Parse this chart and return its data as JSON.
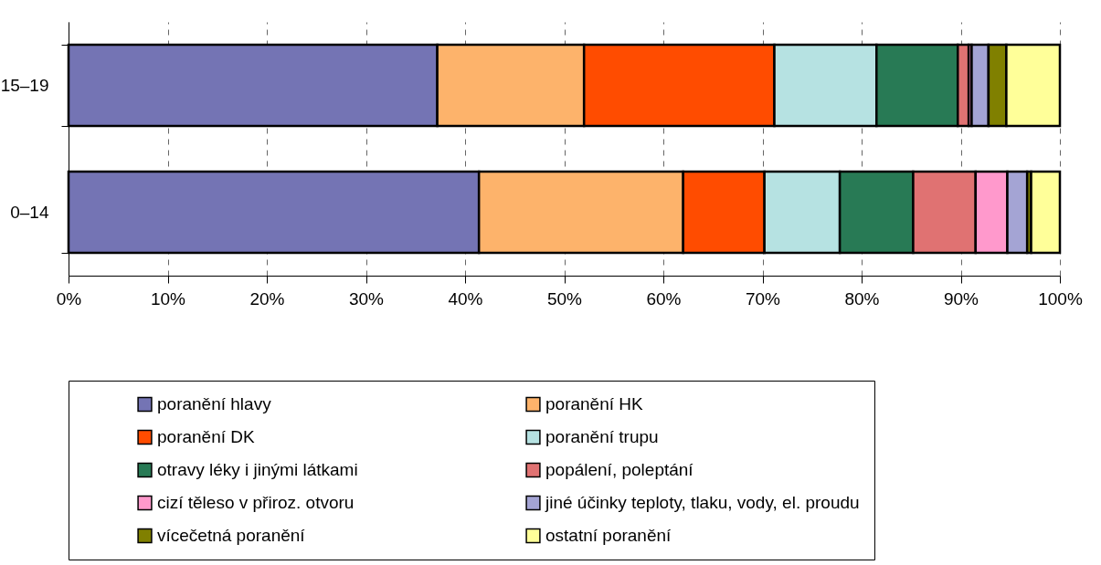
{
  "chart_data": {
    "type": "bar",
    "orientation": "horizontal",
    "stacked": true,
    "categories": [
      "15–19",
      "0–14"
    ],
    "series": [
      {
        "name": "poranění hlavy",
        "color": "#7474b4",
        "values": [
          37.2,
          41.4
        ]
      },
      {
        "name": "poranění HK",
        "color": "#fdb36b",
        "values": [
          14.8,
          20.6
        ]
      },
      {
        "name": "poranění DK",
        "color": "#ff4c00",
        "values": [
          19.2,
          8.2
        ]
      },
      {
        "name": "poranění trupu",
        "color": "#b6e2e2",
        "values": [
          10.3,
          7.6
        ]
      },
      {
        "name": "otravy léky i jinými látkami",
        "color": "#287a55",
        "values": [
          8.2,
          7.4
        ]
      },
      {
        "name": "popálení, poleptání",
        "color": "#e07272",
        "values": [
          1.1,
          6.3
        ]
      },
      {
        "name": "cizí těleso v přiroz. otvoru",
        "color": "#ff99cc",
        "values": [
          0.3,
          3.2
        ]
      },
      {
        "name": "jiné účinky teploty, tlaku, vody, el. proudu",
        "color": "#a4a4d4",
        "values": [
          1.7,
          2.0
        ]
      },
      {
        "name": "vícečetná poranění",
        "color": "#808000",
        "values": [
          1.8,
          0.4
        ]
      },
      {
        "name": "ostatní poranění",
        "color": "#ffff99",
        "values": [
          5.4,
          2.9
        ]
      }
    ],
    "xlim": [
      0,
      100
    ],
    "xticks": [
      {
        "value": 0,
        "label": "0%"
      },
      {
        "value": 10,
        "label": "10%"
      },
      {
        "value": 20,
        "label": "20%"
      },
      {
        "value": 30,
        "label": "30%"
      },
      {
        "value": 40,
        "label": "40%"
      },
      {
        "value": 50,
        "label": "50%"
      },
      {
        "value": 60,
        "label": "60%"
      },
      {
        "value": 70,
        "label": "70%"
      },
      {
        "value": 80,
        "label": "80%"
      },
      {
        "value": 90,
        "label": "90%"
      },
      {
        "value": 100,
        "label": "100%"
      }
    ],
    "grid": "x",
    "legend": "bottom"
  }
}
